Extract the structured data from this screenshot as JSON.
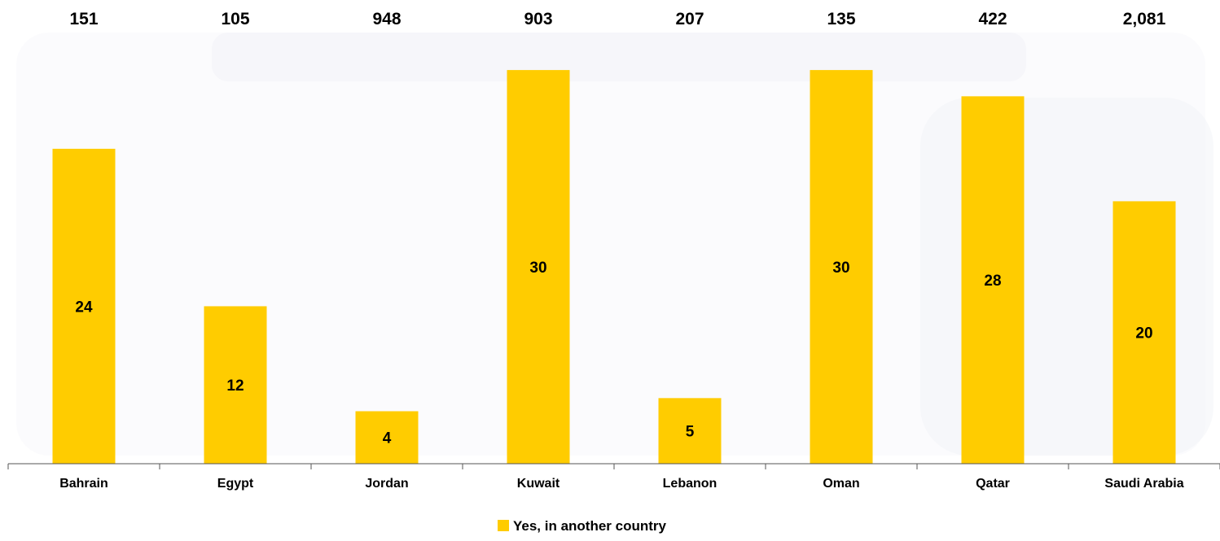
{
  "chart_data": {
    "type": "bar",
    "categories": [
      "Bahrain",
      "Egypt",
      "Jordan",
      "Kuwait",
      "Lebanon",
      "Oman",
      "Qatar",
      "Saudi Arabia"
    ],
    "series": [
      {
        "name": "Yes, in another country",
        "values": [
          24,
          12,
          4,
          30,
          5,
          30,
          28,
          20
        ],
        "color": "#ffcc00"
      }
    ],
    "top_labels": [
      "151",
      "105",
      "948",
      "903",
      "207",
      "135",
      "422",
      "2,081"
    ],
    "ylim": [
      0,
      31
    ],
    "legend_position": "bottom",
    "grid": false,
    "title": "",
    "xlabel": "",
    "ylabel": ""
  }
}
